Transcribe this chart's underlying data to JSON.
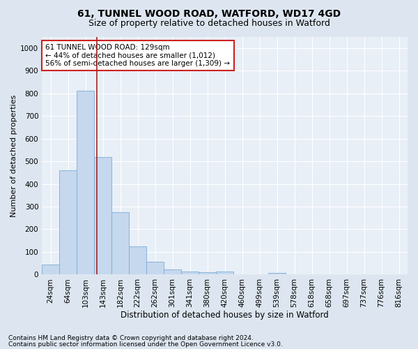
{
  "title1": "61, TUNNEL WOOD ROAD, WATFORD, WD17 4GD",
  "title2": "Size of property relative to detached houses in Watford",
  "xlabel": "Distribution of detached houses by size in Watford",
  "ylabel": "Number of detached properties",
  "footnote1": "Contains HM Land Registry data © Crown copyright and database right 2024.",
  "footnote2": "Contains public sector information licensed under the Open Government Licence v3.0.",
  "categories": [
    "24sqm",
    "64sqm",
    "103sqm",
    "143sqm",
    "182sqm",
    "222sqm",
    "262sqm",
    "301sqm",
    "341sqm",
    "380sqm",
    "420sqm",
    "460sqm",
    "499sqm",
    "539sqm",
    "578sqm",
    "618sqm",
    "658sqm",
    "697sqm",
    "737sqm",
    "776sqm",
    "816sqm"
  ],
  "values": [
    45,
    460,
    810,
    520,
    275,
    125,
    58,
    22,
    12,
    10,
    12,
    0,
    0,
    8,
    0,
    0,
    0,
    0,
    0,
    0,
    0
  ],
  "bar_color": "#c5d8ee",
  "bar_edge_color": "#7aadd4",
  "vline_x_index": 2.65,
  "vline_color": "#aa2222",
  "annotation_text": "61 TUNNEL WOOD ROAD: 129sqm\n← 44% of detached houses are smaller (1,012)\n56% of semi-detached houses are larger (1,309) →",
  "annotation_box_facecolor": "#ffffff",
  "annotation_box_edgecolor": "#cc2222",
  "ylim": [
    0,
    1050
  ],
  "yticks": [
    0,
    100,
    200,
    300,
    400,
    500,
    600,
    700,
    800,
    900,
    1000
  ],
  "bg_color": "#dde6f0",
  "plot_bg_color": "#e8eff7",
  "grid_color": "#ffffff",
  "title1_fontsize": 10,
  "title2_fontsize": 9,
  "xlabel_fontsize": 8.5,
  "ylabel_fontsize": 8,
  "tick_fontsize": 7.5,
  "annot_fontsize": 7.5,
  "footnote_fontsize": 6.5
}
